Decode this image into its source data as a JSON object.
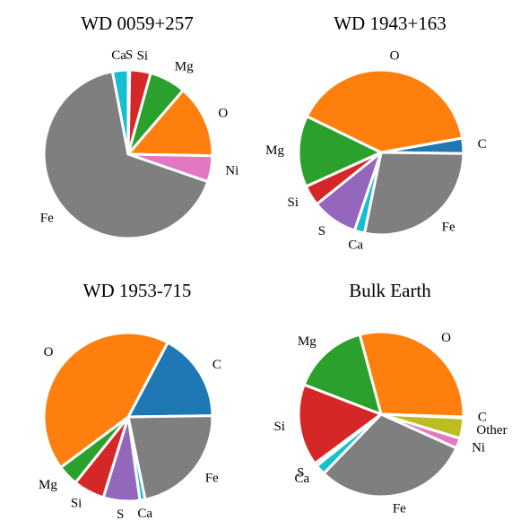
{
  "chart_data": [
    {
      "type": "pie",
      "title": "WD 0059+257",
      "categories": [
        "S",
        "Si",
        "Mg",
        "O",
        "Ni",
        "Fe",
        "Ca"
      ],
      "values": [
        0.3,
        4,
        7,
        14,
        5,
        66.7,
        3
      ],
      "colors": [
        "#9467bd",
        "#d62728",
        "#2ca02c",
        "#ff7f0e",
        "#e377c2",
        "#7f7f7f",
        "#17becf"
      ]
    },
    {
      "type": "pie",
      "title": "WD 1943+163",
      "categories": [
        "C",
        "Fe",
        "Ca",
        "S",
        "Si",
        "Mg",
        "O"
      ],
      "values": [
        3,
        28,
        2,
        9,
        4,
        14,
        40
      ],
      "colors": [
        "#1f77b4",
        "#7f7f7f",
        "#17becf",
        "#9467bd",
        "#d62728",
        "#2ca02c",
        "#ff7f0e"
      ]
    },
    {
      "type": "pie",
      "title": "WD 1953-715",
      "categories": [
        "C",
        "Fe",
        "Ca",
        "S",
        "Si",
        "Mg",
        "O"
      ],
      "values": [
        17,
        22,
        1,
        7,
        6,
        4,
        43
      ],
      "colors": [
        "#1f77b4",
        "#7f7f7f",
        "#17becf",
        "#9467bd",
        "#d62728",
        "#2ca02c",
        "#ff7f0e"
      ]
    },
    {
      "type": "pie",
      "title": "Bulk Earth",
      "categories": [
        "O",
        "C",
        "Other",
        "Ni",
        "Fe",
        "Ca",
        "S",
        "Si",
        "Mg"
      ],
      "values": [
        29.7,
        0.2,
        4,
        2,
        30.5,
        2,
        0.6,
        16,
        15
      ],
      "colors": [
        "#ff7f0e",
        "#1f77b4",
        "#bcbd22",
        "#e377c2",
        "#7f7f7f",
        "#17becf",
        "#9467bd",
        "#d62728",
        "#2ca02c"
      ]
    }
  ]
}
